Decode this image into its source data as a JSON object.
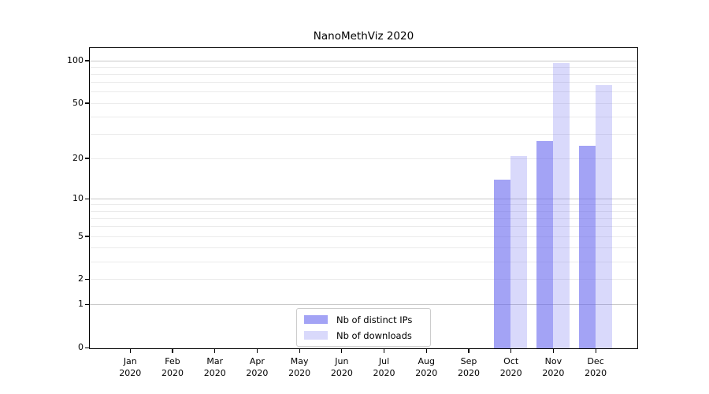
{
  "title": "NanoMethViz 2020",
  "chart_data": {
    "type": "bar",
    "title": "NanoMethViz 2020",
    "scale": "log1p",
    "year": "2020",
    "months": [
      "Jan",
      "Feb",
      "Mar",
      "Apr",
      "May",
      "Jun",
      "Jul",
      "Aug",
      "Sep",
      "Oct",
      "Nov",
      "Dec"
    ],
    "categories": [
      "Jan 2020",
      "Feb 2020",
      "Mar 2020",
      "Apr 2020",
      "May 2020",
      "Jun 2020",
      "Jul 2020",
      "Aug 2020",
      "Sep 2020",
      "Oct 2020",
      "Nov 2020",
      "Dec 2020"
    ],
    "series": [
      {
        "name": "Nb of distinct IPs",
        "color": "rgba(102,102,238,0.6)",
        "values": [
          0,
          0,
          0,
          0,
          0,
          0,
          0,
          0,
          0,
          14,
          27,
          25
        ]
      },
      {
        "name": "Nb of downloads",
        "color": "rgba(102,102,238,0.25)",
        "values": [
          0,
          0,
          0,
          0,
          0,
          0,
          0,
          0,
          0,
          21,
          97,
          68
        ]
      }
    ],
    "y_ticks": [
      0,
      1,
      2,
      5,
      10,
      20,
      50,
      100
    ],
    "ylim": [
      0,
      122
    ],
    "grid": {
      "major": [
        1,
        10,
        100
      ],
      "minor": [
        2,
        3,
        4,
        5,
        6,
        7,
        8,
        9,
        20,
        30,
        40,
        50,
        60,
        70,
        80,
        90
      ]
    },
    "legend_position": "bottom-center",
    "colors": {
      "bar_base": "#6666ee",
      "grid_major": "#c9c9c9",
      "grid_minor": "#ebebeb",
      "axis": "#000000"
    }
  }
}
